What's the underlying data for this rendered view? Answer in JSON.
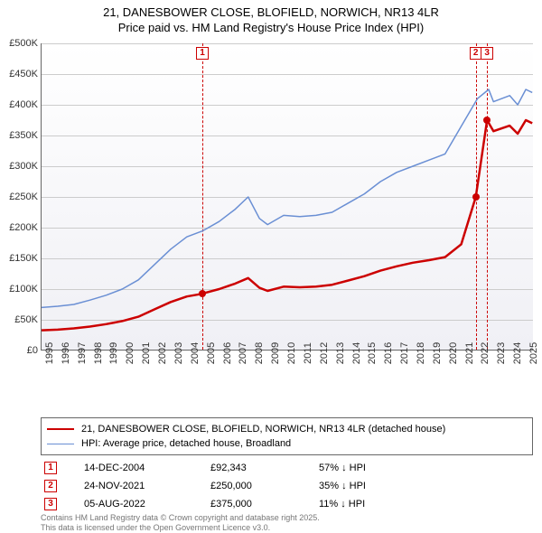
{
  "title": {
    "line1": "21, DANESBOWER CLOSE, BLOFIELD, NORWICH, NR13 4LR",
    "line2": "Price paid vs. HM Land Registry's House Price Index (HPI)",
    "fontsize": 13
  },
  "chart": {
    "type": "line",
    "background_gradient": [
      "#f0f0f5",
      "#ffffff"
    ],
    "grid_color": "#cccccc",
    "axis_color": "#666666",
    "ylim": [
      0,
      500000
    ],
    "ytick_step": 50000,
    "yticks": [
      "£0",
      "£50K",
      "£100K",
      "£150K",
      "£200K",
      "£250K",
      "£300K",
      "£350K",
      "£400K",
      "£450K",
      "£500K"
    ],
    "xlim": [
      1995,
      2025.5
    ],
    "xticks": [
      "1995",
      "1996",
      "1997",
      "1998",
      "1999",
      "2000",
      "2001",
      "2002",
      "2003",
      "2004",
      "2005",
      "2006",
      "2007",
      "2008",
      "2009",
      "2010",
      "2011",
      "2012",
      "2013",
      "2014",
      "2015",
      "2016",
      "2017",
      "2018",
      "2019",
      "2020",
      "2021",
      "2022",
      "2023",
      "2024",
      "2025"
    ],
    "series": [
      {
        "name": "hpi",
        "label": "HPI: Average price, detached house, Broadland",
        "color": "#6a8fd4",
        "line_width": 1.5,
        "data": [
          [
            1995,
            70000
          ],
          [
            1996,
            72000
          ],
          [
            1997,
            75000
          ],
          [
            1998,
            82000
          ],
          [
            1999,
            90000
          ],
          [
            2000,
            100000
          ],
          [
            2001,
            115000
          ],
          [
            2002,
            140000
          ],
          [
            2003,
            165000
          ],
          [
            2004,
            185000
          ],
          [
            2005,
            195000
          ],
          [
            2006,
            210000
          ],
          [
            2007,
            230000
          ],
          [
            2007.8,
            250000
          ],
          [
            2008.5,
            215000
          ],
          [
            2009,
            205000
          ],
          [
            2010,
            220000
          ],
          [
            2011,
            218000
          ],
          [
            2012,
            220000
          ],
          [
            2013,
            225000
          ],
          [
            2014,
            240000
          ],
          [
            2015,
            255000
          ],
          [
            2016,
            275000
          ],
          [
            2017,
            290000
          ],
          [
            2018,
            300000
          ],
          [
            2019,
            310000
          ],
          [
            2020,
            320000
          ],
          [
            2021,
            365000
          ],
          [
            2022,
            410000
          ],
          [
            2022.7,
            425000
          ],
          [
            2023,
            405000
          ],
          [
            2024,
            415000
          ],
          [
            2024.5,
            400000
          ],
          [
            2025,
            425000
          ],
          [
            2025.4,
            420000
          ]
        ]
      },
      {
        "name": "property",
        "label": "21, DANESBOWER CLOSE, BLOFIELD, NORWICH, NR13 4LR (detached house)",
        "color": "#cc0000",
        "line_width": 2.5,
        "data": [
          [
            1995,
            33000
          ],
          [
            1996,
            34000
          ],
          [
            1997,
            36000
          ],
          [
            1998,
            39000
          ],
          [
            1999,
            43000
          ],
          [
            2000,
            48000
          ],
          [
            2001,
            55000
          ],
          [
            2002,
            67000
          ],
          [
            2003,
            79000
          ],
          [
            2004,
            88000
          ],
          [
            2004.96,
            92343
          ],
          [
            2005,
            93000
          ],
          [
            2006,
            100000
          ],
          [
            2007,
            109000
          ],
          [
            2007.8,
            118000
          ],
          [
            2008.5,
            102000
          ],
          [
            2009,
            97000
          ],
          [
            2010,
            104000
          ],
          [
            2011,
            103000
          ],
          [
            2012,
            104000
          ],
          [
            2013,
            107000
          ],
          [
            2014,
            114000
          ],
          [
            2015,
            121000
          ],
          [
            2016,
            130000
          ],
          [
            2017,
            137000
          ],
          [
            2018,
            143000
          ],
          [
            2019,
            147000
          ],
          [
            2020,
            152000
          ],
          [
            2021,
            173000
          ],
          [
            2021.9,
            250000
          ],
          [
            2022.6,
            375000
          ],
          [
            2023,
            357000
          ],
          [
            2024,
            366000
          ],
          [
            2024.5,
            353000
          ],
          [
            2025,
            375000
          ],
          [
            2025.4,
            370000
          ]
        ]
      }
    ],
    "sale_markers": [
      {
        "n": "1",
        "year": 2004.96,
        "price": 92343
      },
      {
        "n": "2",
        "year": 2021.9,
        "price": 250000
      },
      {
        "n": "3",
        "year": 2022.6,
        "price": 375000
      }
    ]
  },
  "legend": {
    "items": [
      {
        "color": "#cc0000",
        "width": 2.5,
        "label": "21, DANESBOWER CLOSE, BLOFIELD, NORWICH, NR13 4LR (detached house)"
      },
      {
        "color": "#6a8fd4",
        "width": 1.5,
        "label": "HPI: Average price, detached house, Broadland"
      }
    ]
  },
  "sales": [
    {
      "n": "1",
      "date": "14-DEC-2004",
      "price": "£92,343",
      "diff": "57% ↓ HPI"
    },
    {
      "n": "2",
      "date": "24-NOV-2021",
      "price": "£250,000",
      "diff": "35% ↓ HPI"
    },
    {
      "n": "3",
      "date": "05-AUG-2022",
      "price": "£375,000",
      "diff": "11% ↓ HPI"
    }
  ],
  "footer": {
    "line1": "Contains HM Land Registry data © Crown copyright and database right 2025.",
    "line2": "This data is licensed under the Open Government Licence v3.0."
  }
}
